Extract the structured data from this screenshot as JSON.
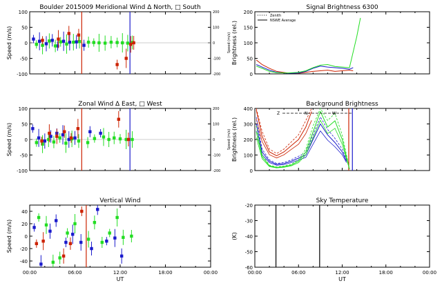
{
  "chart_data": [
    {
      "id": "meridional",
      "type": "scatter",
      "title": "Boulder   2015009     Meridional Wind   Δ North, □ South",
      "ylabel": "Speed (m/s)",
      "y2label": "Speed (m/s)",
      "ylim": [
        -100,
        100
      ],
      "yticks": [
        -100,
        -50,
        0,
        50,
        100
      ],
      "y2lim": [
        -200,
        200
      ],
      "y2ticks": [
        -200,
        -100,
        0,
        100,
        200
      ],
      "xlim": [
        0,
        24
      ],
      "vlines": [
        {
          "x": 6.9,
          "color": "#cc2200"
        },
        {
          "x": 13.3,
          "color": "#1a1acc"
        }
      ],
      "series": [
        {
          "name": "blue",
          "color": "#1a1acc",
          "x": [
            0.5,
            1.3,
            2.2,
            3.0,
            3.7,
            4.5,
            5.3,
            6.2,
            7.2
          ],
          "y": [
            12,
            5,
            -3,
            8,
            -10,
            5,
            2,
            3,
            -8
          ]
        },
        {
          "name": "green",
          "color": "#22dd22",
          "x": [
            0.9,
            1.7,
            2.6,
            3.4,
            4.1,
            4.9,
            5.8,
            6.6,
            7.8,
            8.5,
            9.2,
            10.0,
            10.8,
            11.6,
            12.3,
            13.0,
            13.6
          ],
          "y": [
            -5,
            -8,
            6,
            -10,
            3,
            -4,
            2,
            4,
            2,
            1,
            0,
            -1,
            2,
            1,
            0,
            -1,
            1
          ]
        },
        {
          "name": "red",
          "color": "#cc2200",
          "x": [
            1.7,
            3.8,
            5.2,
            6.5,
            11.6,
            12.8,
            13.4,
            13.8
          ],
          "y": [
            8,
            12,
            30,
            25,
            -70,
            -50,
            -5,
            0
          ]
        }
      ]
    },
    {
      "id": "signal",
      "type": "line",
      "title": "Signal Brightness       6300",
      "ylabel": "Brightness (rel.)",
      "ylim": [
        0,
        200
      ],
      "yticks": [
        0,
        50,
        100,
        150,
        200
      ],
      "xlim": [
        0,
        24
      ],
      "legend": [
        "Zenith",
        "NSWE Average"
      ],
      "series": [
        {
          "name": "red",
          "color": "#cc2200",
          "x": [
            0.2,
            1.0,
            2.0,
            3.0,
            4.5,
            6.0,
            7.0,
            8.0,
            9.0,
            10.0,
            11.0,
            12.0,
            13.0,
            13.5
          ],
          "y": [
            45,
            30,
            18,
            8,
            3,
            2,
            5,
            8,
            10,
            12,
            8,
            10,
            12,
            10
          ]
        },
        {
          "name": "blue",
          "color": "#1a1acc",
          "x": [
            0.2,
            1.0,
            2.0,
            3.0,
            4.5,
            6.0,
            7.0,
            8.0,
            9.0,
            10.0,
            11.0,
            12.0,
            13.0,
            13.5
          ],
          "y": [
            30,
            22,
            12,
            5,
            2,
            3,
            8,
            18,
            25,
            22,
            20,
            18,
            15,
            20
          ]
        },
        {
          "name": "green",
          "color": "#22dd22",
          "x": [
            0.2,
            1.0,
            2.0,
            3.0,
            4.5,
            6.0,
            7.0,
            8.0,
            9.0,
            10.0,
            11.0,
            12.0,
            13.0,
            14.0,
            14.5
          ],
          "y": [
            25,
            18,
            8,
            4,
            3,
            5,
            10,
            20,
            28,
            30,
            24,
            22,
            20,
            120,
            180
          ]
        }
      ]
    },
    {
      "id": "zonal",
      "type": "scatter",
      "title": "Zonal Wind      Δ East, □ West",
      "ylabel": "Speed (m/s)",
      "y2label": "Speed (m/s)",
      "ylim": [
        -100,
        100
      ],
      "yticks": [
        -100,
        -50,
        0,
        50,
        100
      ],
      "y2lim": [
        -200,
        200
      ],
      "y2ticks": [
        -200,
        -100,
        0,
        100,
        200
      ],
      "xlim": [
        0,
        24
      ],
      "vlines": [
        {
          "x": 6.9,
          "color": "#cc2200"
        },
        {
          "x": 13.3,
          "color": "#1a1acc"
        }
      ],
      "series": [
        {
          "name": "blue",
          "color": "#1a1acc",
          "x": [
            0.4,
            1.2,
            2.0,
            2.8,
            3.6,
            4.4,
            5.2,
            6.0,
            8.0,
            9.4
          ],
          "y": [
            35,
            5,
            -5,
            10,
            20,
            15,
            0,
            5,
            25,
            20
          ]
        },
        {
          "name": "green",
          "color": "#22dd22",
          "x": [
            0.9,
            1.7,
            2.5,
            3.2,
            4.0,
            4.8,
            5.6,
            6.5,
            7.7,
            8.6,
            9.8,
            10.5,
            11.2,
            12.0,
            12.8,
            13.6
          ],
          "y": [
            -10,
            -15,
            0,
            -8,
            5,
            -12,
            2,
            -5,
            -10,
            3,
            8,
            0,
            5,
            2,
            0,
            0
          ]
        },
        {
          "name": "red",
          "color": "#cc2200",
          "x": [
            1.6,
            2.6,
            3.6,
            4.6,
            5.5,
            6.4,
            11.8,
            13.1
          ],
          "y": [
            -5,
            20,
            10,
            25,
            5,
            35,
            65,
            0
          ]
        }
      ]
    },
    {
      "id": "background",
      "type": "line",
      "title": "Background Brightness",
      "ylabel": "Brightness (rel.)",
      "ylim": [
        0,
        400
      ],
      "yticks": [
        0,
        100,
        200,
        300,
        400
      ],
      "xlim": [
        0,
        24
      ],
      "vlines": [
        {
          "x": 12.9,
          "color": "#cc2200"
        },
        {
          "x": 13.4,
          "color": "#1a1acc"
        }
      ],
      "annotations": [
        "Z",
        "N",
        "W"
      ],
      "series": [
        {
          "name": "red",
          "color": "#cc2200",
          "x": [
            0.2,
            1.0,
            2.0,
            3.0,
            4.0,
            5.0,
            6.0,
            7.0,
            7.8
          ],
          "y": [
            390,
            220,
            120,
            95,
            120,
            160,
            200,
            280,
            380
          ]
        },
        {
          "name": "blue",
          "color": "#1a1acc",
          "x": [
            0.2,
            1.0,
            2.0,
            3.0,
            4.0,
            5.0,
            6.0,
            7.0,
            8.0,
            9.0,
            10.0,
            11.0,
            12.0,
            12.6
          ],
          "y": [
            300,
            120,
            60,
            40,
            45,
            60,
            80,
            100,
            200,
            300,
            230,
            180,
            120,
            60
          ]
        },
        {
          "name": "green",
          "color": "#22dd22",
          "x": [
            0.2,
            1.0,
            2.0,
            3.0,
            4.0,
            5.0,
            6.0,
            7.0,
            8.0,
            9.0,
            10.0,
            11.0,
            12.0,
            13.0
          ],
          "y": [
            250,
            90,
            30,
            20,
            25,
            35,
            60,
            120,
            250,
            380,
            280,
            320,
            200,
            10
          ]
        }
      ]
    },
    {
      "id": "vertical",
      "type": "scatter",
      "title": "Vertical Wind",
      "ylabel": "Speed (m/s)",
      "ylim": [
        -50,
        50
      ],
      "yticks": [
        -40,
        -20,
        0,
        20,
        40
      ],
      "xlim": [
        0,
        24
      ],
      "xticks": [
        "00:00",
        "06:00",
        "12:00",
        "18:00",
        "00:00"
      ],
      "xlabel": "UT",
      "vlines": [
        {
          "x": 7.5,
          "color": "#cc2200"
        }
      ],
      "series": [
        {
          "name": "blue",
          "color": "#1a1acc",
          "x": [
            0.6,
            1.5,
            2.7,
            3.5,
            4.8,
            5.7,
            6.8,
            8.2,
            9.0,
            10.2,
            11.3,
            12.2
          ],
          "y": [
            14,
            -45,
            8,
            25,
            -10,
            3,
            -10,
            -20,
            43,
            -8,
            -3,
            -32
          ]
        },
        {
          "name": "green",
          "color": "#22dd22",
          "x": [
            1.2,
            2.2,
            3.1,
            4.0,
            5.0,
            6.0,
            7.8,
            8.6,
            9.6,
            10.6,
            11.6,
            12.4,
            13.5
          ],
          "y": [
            30,
            18,
            -42,
            -35,
            5,
            20,
            -5,
            22,
            -10,
            5,
            30,
            -2,
            0
          ]
        },
        {
          "name": "red",
          "color": "#cc2200",
          "x": [
            0.9,
            1.8,
            4.5,
            5.4,
            6.9
          ],
          "y": [
            -12,
            -8,
            -32,
            -12,
            40
          ]
        }
      ]
    },
    {
      "id": "sky",
      "type": "line",
      "title": "Sky Temperature",
      "ylabel": "(K)",
      "ylim": [
        -60,
        -20
      ],
      "yticks": [
        -60,
        -50,
        -40,
        -30,
        -20
      ],
      "xlim": [
        0,
        24
      ],
      "xticks": [
        "00:00",
        "06:00",
        "12:00",
        "18:00",
        "00:00"
      ],
      "xlabel": "UT",
      "vlines": [
        {
          "x": 2.9,
          "color": "#000000"
        },
        {
          "x": 8.9,
          "color": "#000000"
        }
      ],
      "series": []
    }
  ]
}
